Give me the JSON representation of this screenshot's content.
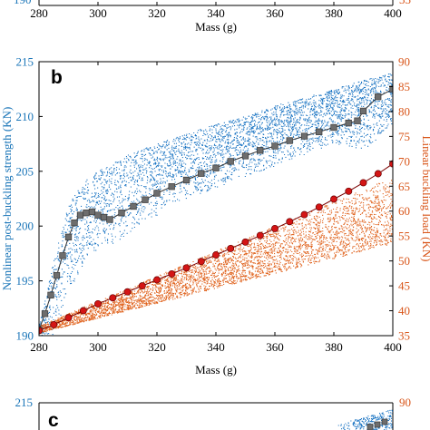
{
  "colors": {
    "left_axis": "#1a75b8",
    "right_axis": "#d9561a",
    "blue_cloud": "#1f77c4",
    "orange_cloud": "#e0621c",
    "gray_markers": "#6d6d6d",
    "red_markers": "#d41515"
  },
  "top_strip": {
    "x_ticks": [
      "280",
      "300",
      "320",
      "340",
      "360",
      "380",
      "400"
    ],
    "xlabel": "Mass (g)",
    "left_partial_tick": "190",
    "right_partial_tick": "35"
  },
  "bottom_strip": {
    "panel_letter": "c",
    "left_tick": "215",
    "right_tick": "90"
  },
  "chart_data": {
    "type": "scatter",
    "panel_letter": "b",
    "xlabel": "Mass (g)",
    "ylabel_left": "Nonlinear post-buckling strength (KN)",
    "ylabel_right": "Linear buckling load (KN)",
    "xlim": [
      280,
      400
    ],
    "ylim_left": [
      190,
      215
    ],
    "ylim_right": [
      35,
      90
    ],
    "x_ticks": [
      "280",
      "300",
      "320",
      "340",
      "360",
      "380",
      "400"
    ],
    "y_ticks_left": [
      "190",
      "195",
      "200",
      "205",
      "210",
      "215"
    ],
    "y_ticks_right": [
      "35",
      "40",
      "45",
      "50",
      "55",
      "60",
      "65",
      "70",
      "75",
      "80",
      "85",
      "90"
    ],
    "grid": false,
    "series": [
      {
        "axis": "left",
        "style": "scatter-cloud",
        "color": "blue_cloud",
        "x": [
          280,
          285,
          290,
          295,
          300,
          310,
          320,
          330,
          340,
          350,
          360,
          370,
          380,
          390,
          400
        ],
        "y_low": [
          190,
          190,
          194,
          196.5,
          197.5,
          199,
          201,
          202.5,
          203.5,
          204.5,
          205.5,
          206.5,
          207.5,
          207,
          209
        ],
        "y_high": [
          191,
          197,
          202,
          204,
          205,
          206.5,
          207.5,
          208.5,
          209.3,
          210,
          211,
          211.7,
          212.5,
          213.3,
          214
        ]
      },
      {
        "axis": "left",
        "style": "square-markers",
        "color": "gray_markers",
        "x": [
          280,
          282,
          284,
          286,
          288,
          290,
          292,
          294,
          296,
          298,
          300,
          302,
          304,
          308,
          312,
          316,
          320,
          325,
          330,
          335,
          340,
          345,
          350,
          355,
          360,
          365,
          370,
          375,
          380,
          385,
          388,
          390,
          395,
          400
        ],
        "y": [
          190.5,
          192,
          193.7,
          195.5,
          197.3,
          199,
          200.3,
          201,
          201.2,
          201.3,
          201,
          200.8,
          200.6,
          201.2,
          201.8,
          202.4,
          203,
          203.6,
          204.2,
          204.8,
          205.3,
          205.9,
          206.4,
          206.9,
          207.3,
          207.8,
          208.2,
          208.6,
          209,
          209.4,
          209.6,
          210.5,
          211.8,
          212.5
        ]
      },
      {
        "axis": "right",
        "style": "scatter-cloud",
        "color": "orange_cloud",
        "x": [
          280,
          290,
          300,
          310,
          320,
          330,
          340,
          350,
          360,
          370,
          380,
          390,
          400
        ],
        "y_low": [
          35.5,
          37,
          38.5,
          40,
          41.5,
          43,
          44.5,
          46,
          47.5,
          49,
          50.5,
          52,
          53.5
        ],
        "y_high": [
          37,
          39.5,
          42,
          44.5,
          47,
          49.5,
          52,
          54.5,
          57,
          59.5,
          62,
          64.5,
          67
        ]
      },
      {
        "axis": "right",
        "style": "circle-markers",
        "color": "red_markers",
        "x": [
          280,
          285,
          290,
          295,
          300,
          305,
          310,
          315,
          320,
          325,
          330,
          335,
          340,
          345,
          350,
          355,
          360,
          365,
          370,
          375,
          380,
          385,
          390,
          395,
          400
        ],
        "y": [
          36,
          37.2,
          38.6,
          40,
          41.4,
          42.6,
          43.8,
          45,
          46.2,
          47.4,
          48.6,
          49.9,
          51.2,
          52.5,
          53.8,
          55.1,
          56.5,
          57.9,
          59.3,
          60.8,
          62.4,
          64,
          65.7,
          67.5,
          69.5
        ]
      }
    ]
  }
}
